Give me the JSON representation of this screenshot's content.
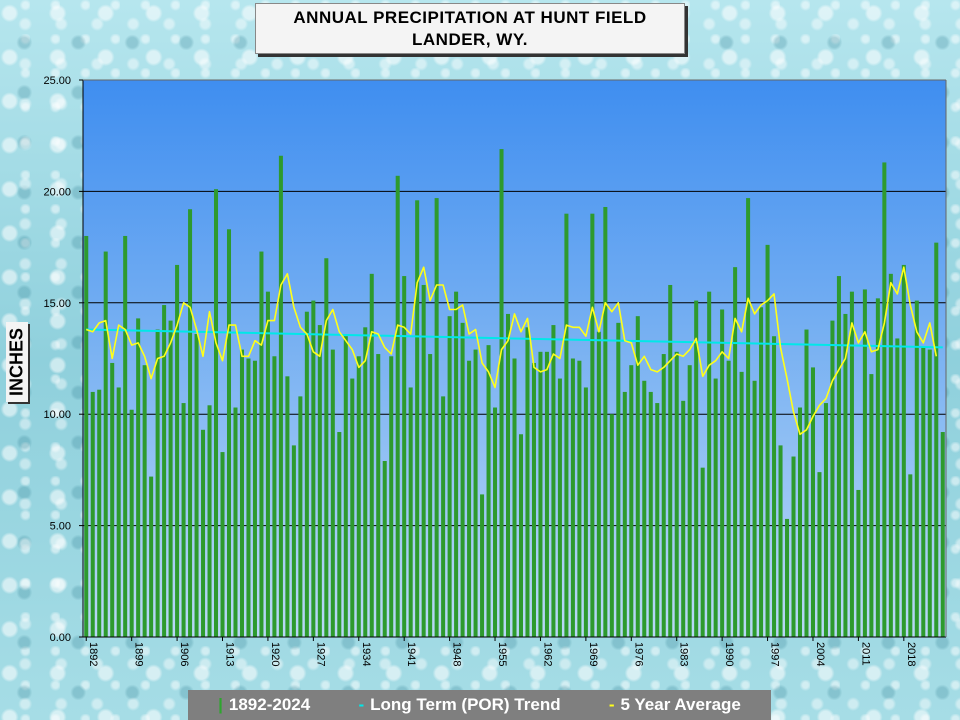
{
  "chart_data": {
    "type": "bar",
    "title_line1": "ANNUAL PRECIPITATION AT HUNT FIELD",
    "title_line2": "LANDER, WY.",
    "ylabel": "INCHES",
    "xlabel": "",
    "ylim": [
      0,
      25
    ],
    "yticks": [
      "0.00",
      "5.00",
      "10.00",
      "15.00",
      "20.00",
      "25.00"
    ],
    "xtick_years": [
      1892,
      1899,
      1906,
      1913,
      1920,
      1927,
      1934,
      1941,
      1948,
      1955,
      1962,
      1969,
      1976,
      1983,
      1990,
      1997,
      2004,
      2011,
      2018
    ],
    "grid": true,
    "legend_position": "bottom",
    "start_year": 1892,
    "end_year": 2024,
    "values": [
      18.0,
      11.0,
      11.1,
      17.3,
      12.3,
      11.2,
      18.0,
      10.2,
      14.3,
      12.2,
      7.2,
      13.8,
      14.9,
      14.2,
      16.7,
      10.5,
      19.2,
      13.6,
      9.3,
      10.4,
      20.1,
      8.3,
      18.3,
      10.3,
      12.9,
      12.5,
      12.4,
      17.3,
      15.5,
      12.6,
      21.6,
      11.7,
      8.6,
      10.8,
      14.6,
      15.1,
      14.0,
      17.0,
      12.9,
      9.2,
      13.5,
      11.6,
      12.6,
      13.9,
      16.3,
      12.7,
      7.9,
      12.6,
      20.7,
      16.2,
      11.2,
      19.6,
      15.8,
      12.7,
      19.7,
      10.8,
      14.4,
      15.5,
      14.1,
      12.4,
      12.9,
      6.4,
      13.1,
      10.3,
      21.9,
      14.5,
      12.5,
      9.1,
      13.9,
      12.3,
      12.8,
      12.8,
      14.0,
      11.6,
      19.0,
      12.5,
      12.4,
      11.2,
      19.0,
      13.7,
      19.3,
      10.0,
      14.1,
      11.0,
      12.2,
      14.4,
      11.5,
      11.0,
      10.5,
      12.7,
      15.8,
      12.8,
      10.6,
      12.2,
      15.1,
      7.6,
      15.5,
      11.6,
      14.7,
      12.4,
      16.6,
      11.9,
      19.7,
      11.5,
      14.8,
      17.6,
      13.5,
      8.6,
      5.3,
      8.1,
      10.3,
      13.8,
      12.1,
      7.4,
      10.5,
      14.2,
      16.2,
      14.5,
      15.5,
      6.6,
      15.6,
      11.8,
      15.2,
      21.3,
      16.3,
      13.4,
      16.7,
      7.3,
      15.1,
      13.0,
      12.9,
      17.7,
      9.2
    ],
    "trend": {
      "start": 13.8,
      "end": 13.0
    },
    "five_year_average": [
      13.8,
      13.7,
      14.1,
      14.2,
      12.5,
      14.0,
      13.8,
      13.1,
      13.2,
      12.6,
      11.6,
      12.5,
      12.6,
      13.2,
      14.0,
      15.0,
      14.8,
      13.8,
      12.6,
      14.6,
      13.2,
      12.4,
      14.0,
      14.0,
      12.6,
      12.6,
      13.3,
      13.1,
      14.2,
      14.2,
      15.8,
      16.3,
      14.8,
      13.9,
      13.6,
      12.8,
      12.6,
      14.2,
      14.7,
      13.7,
      13.3,
      12.9,
      12.1,
      12.4,
      13.7,
      13.6,
      13.0,
      12.7,
      14.0,
      13.9,
      13.6,
      15.9,
      16.6,
      15.1,
      15.8,
      15.8,
      14.7,
      14.7,
      14.9,
      13.6,
      13.8,
      12.3,
      11.9,
      11.2,
      12.9,
      13.3,
      14.5,
      13.7,
      14.3,
      12.1,
      11.9,
      12.0,
      12.7,
      12.5,
      14.0,
      13.9,
      13.9,
      13.5,
      14.8,
      13.7,
      15.0,
      14.6,
      15.0,
      13.3,
      13.2,
      12.2,
      12.6,
      12.0,
      11.9,
      12.1,
      12.4,
      12.7,
      12.6,
      12.9,
      13.4,
      11.7,
      12.2,
      12.4,
      12.8,
      12.5,
      14.3,
      13.7,
      15.2,
      14.5,
      14.9,
      15.1,
      15.4,
      13.0,
      11.6,
      10.1,
      9.1,
      9.3,
      9.9,
      10.4,
      10.7,
      11.5,
      12.0,
      12.5,
      14.1,
      13.2,
      13.7,
      12.8,
      12.9,
      14.1,
      15.9,
      15.4,
      16.6,
      14.9,
      13.7,
      13.2,
      14.1,
      12.6
    ],
    "colors": {
      "bars": "#2e9a2e",
      "trend": "#00e8e8",
      "five_year_average": "#ffff1a",
      "plot_bg_top": "#3f8ef0",
      "plot_bg_bottom": "#b9d8f5",
      "grid": "#000000"
    }
  },
  "legend": {
    "bars_symbol": "|",
    "bars_label": "1892-2024",
    "trend_symbol": "-",
    "trend_label": "Long Term (POR) Trend",
    "avg_symbol": "-",
    "avg_label": "5 Year Average"
  }
}
